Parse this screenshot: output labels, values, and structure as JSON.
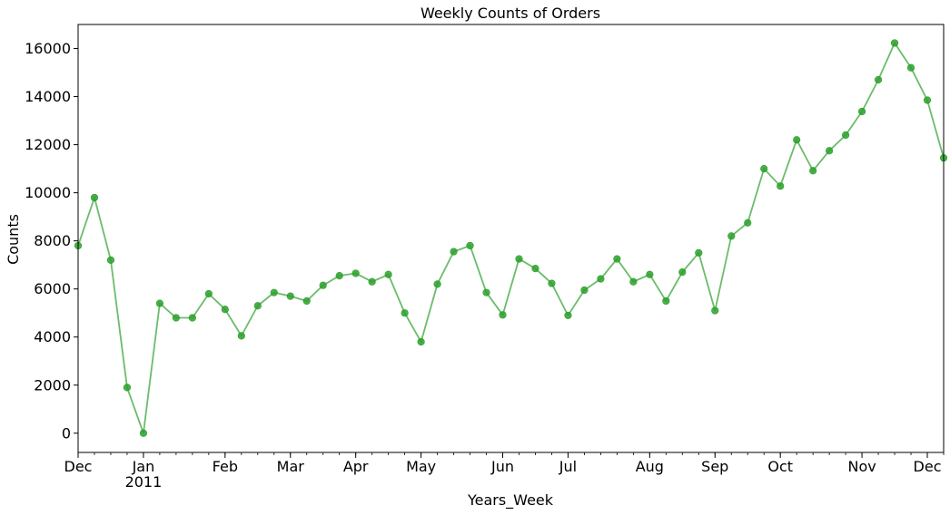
{
  "chart_data": {
    "type": "line",
    "title": "Weekly Counts of Orders",
    "xlabel": "Years_Week",
    "ylabel": "Counts",
    "ylim": [
      -800,
      17000
    ],
    "yticks": [
      0,
      2000,
      4000,
      6000,
      8000,
      10000,
      12000,
      14000,
      16000
    ],
    "xlim": [
      "2010-12-05",
      "2011-12-11"
    ],
    "x_ticks": [
      {
        "label": "Dec",
        "date": "2010-12-05"
      },
      {
        "label": "Jan",
        "sublabel": "2011",
        "date": "2011-01-02"
      },
      {
        "label": "Feb",
        "date": "2011-02-06"
      },
      {
        "label": "Mar",
        "date": "2011-03-06"
      },
      {
        "label": "Apr",
        "date": "2011-04-03"
      },
      {
        "label": "May",
        "date": "2011-05-01"
      },
      {
        "label": "Jun",
        "date": "2011-06-05"
      },
      {
        "label": "Jul",
        "date": "2011-07-03"
      },
      {
        "label": "Aug",
        "date": "2011-08-07"
      },
      {
        "label": "Sep",
        "date": "2011-09-04"
      },
      {
        "label": "Oct",
        "date": "2011-10-02"
      },
      {
        "label": "Nov",
        "date": "2011-11-06"
      },
      {
        "label": "Dec",
        "date": "2011-12-04"
      }
    ],
    "series": [
      {
        "color": "#2ca02c",
        "x": [
          "2010-12-05",
          "2010-12-12",
          "2010-12-19",
          "2010-12-26",
          "2011-01-02",
          "2011-01-09",
          "2011-01-16",
          "2011-01-23",
          "2011-01-30",
          "2011-02-06",
          "2011-02-13",
          "2011-02-20",
          "2011-02-27",
          "2011-03-06",
          "2011-03-13",
          "2011-03-20",
          "2011-03-27",
          "2011-04-03",
          "2011-04-10",
          "2011-04-17",
          "2011-04-24",
          "2011-05-01",
          "2011-05-08",
          "2011-05-15",
          "2011-05-22",
          "2011-05-29",
          "2011-06-05",
          "2011-06-12",
          "2011-06-19",
          "2011-06-26",
          "2011-07-03",
          "2011-07-10",
          "2011-07-17",
          "2011-07-24",
          "2011-07-31",
          "2011-08-07",
          "2011-08-14",
          "2011-08-21",
          "2011-08-28",
          "2011-09-04",
          "2011-09-11",
          "2011-09-18",
          "2011-09-25",
          "2011-10-02",
          "2011-10-09",
          "2011-10-16",
          "2011-10-23",
          "2011-10-30",
          "2011-11-06",
          "2011-11-13",
          "2011-11-20",
          "2011-11-27",
          "2011-12-04",
          "2011-12-11"
        ],
        "values": [
          7800,
          9800,
          7200,
          1900,
          0,
          5400,
          4800,
          4800,
          5800,
          5150,
          4050,
          5300,
          5850,
          5700,
          5500,
          6150,
          6550,
          6650,
          6300,
          6600,
          5000,
          3800,
          6200,
          7550,
          7800,
          5850,
          4920,
          7250,
          6850,
          6230,
          4900,
          5950,
          6420,
          7250,
          6300,
          6600,
          5500,
          6700,
          7500,
          5100,
          8200,
          8750,
          11000,
          10280,
          12200,
          10920,
          11750,
          12400,
          13380,
          14700,
          16230,
          15200,
          13850,
          11450
        ]
      }
    ]
  }
}
